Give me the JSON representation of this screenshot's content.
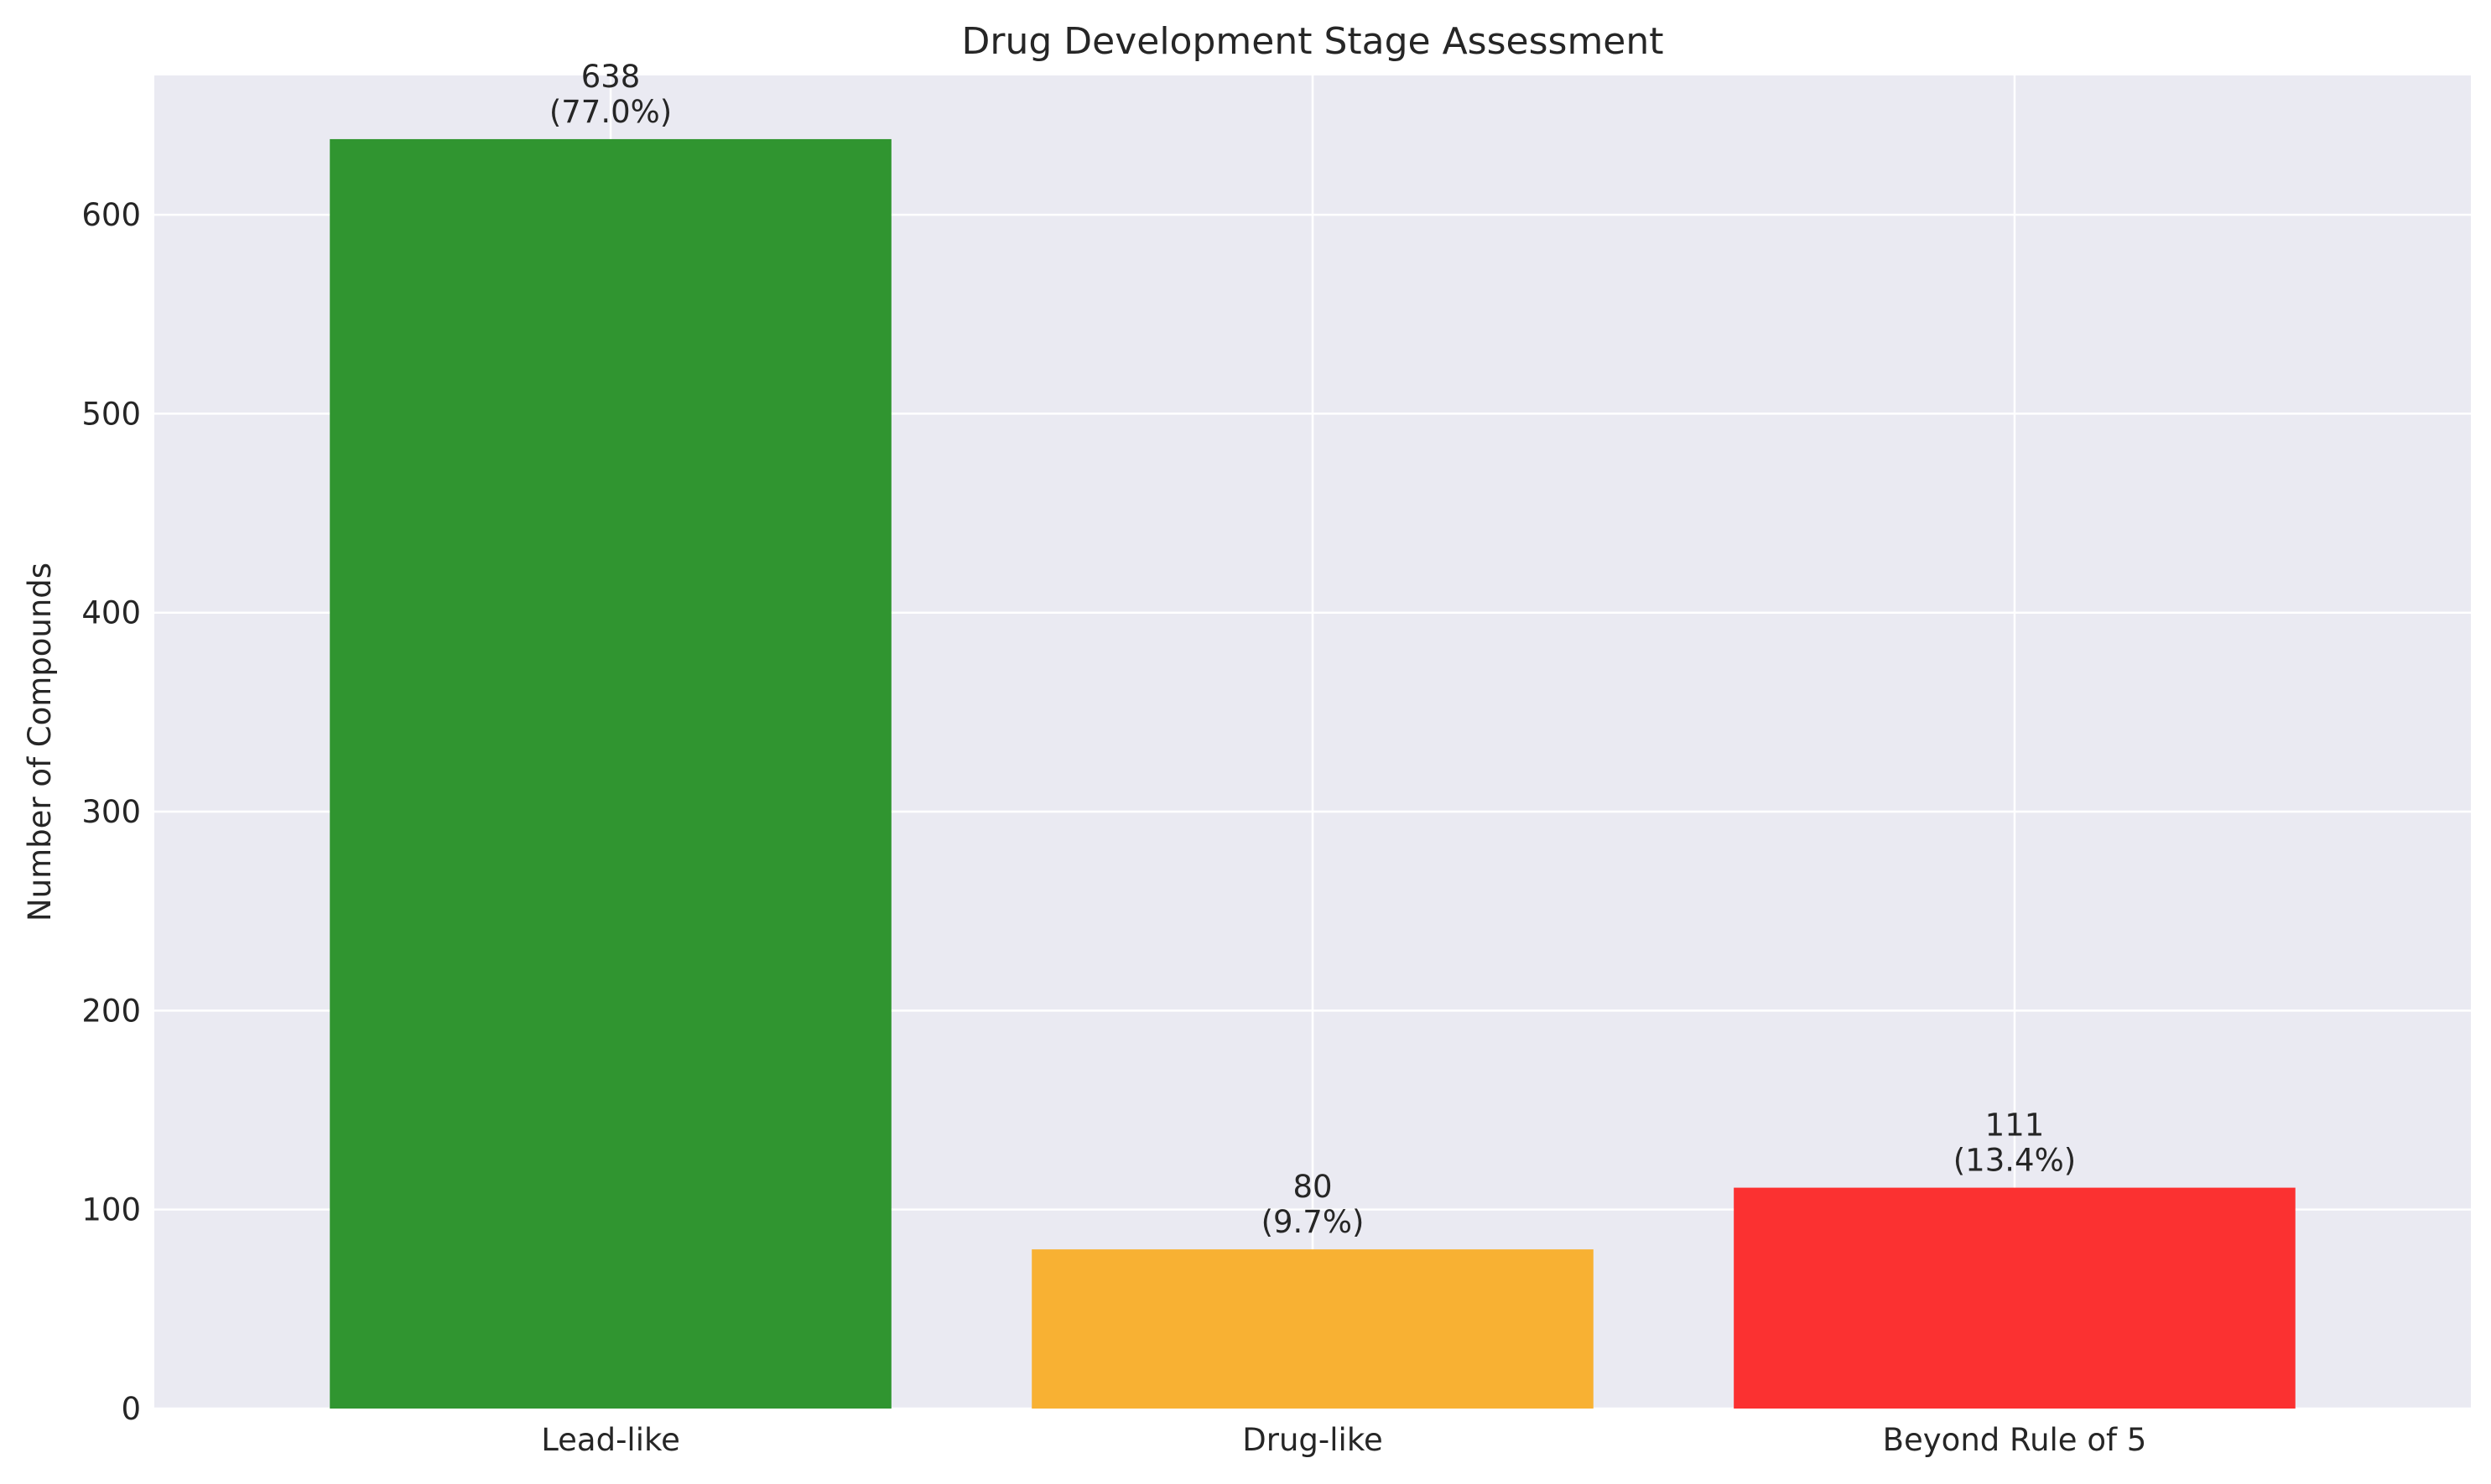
{
  "chart_data": {
    "type": "bar",
    "title": "Drug Development Stage Assessment",
    "xlabel": "",
    "ylabel": "Number of Compounds",
    "categories": [
      "Lead-like",
      "Drug-like",
      "Beyond Rule of 5"
    ],
    "values": [
      638,
      80,
      111
    ],
    "value_labels": [
      "638",
      "80",
      "111"
    ],
    "percent_labels": [
      "(77.0%)",
      "(9.7%)",
      "(13.4%)"
    ],
    "colors": [
      "#309530",
      "#f8b133",
      "#fb3131"
    ],
    "ylim": [
      0,
      670
    ],
    "yticks": [
      0,
      100,
      200,
      300,
      400,
      500,
      600
    ],
    "ytick_labels": [
      "0",
      "100",
      "200",
      "300",
      "400",
      "500",
      "600"
    ],
    "grid": true,
    "background": "#eaeaf2"
  }
}
